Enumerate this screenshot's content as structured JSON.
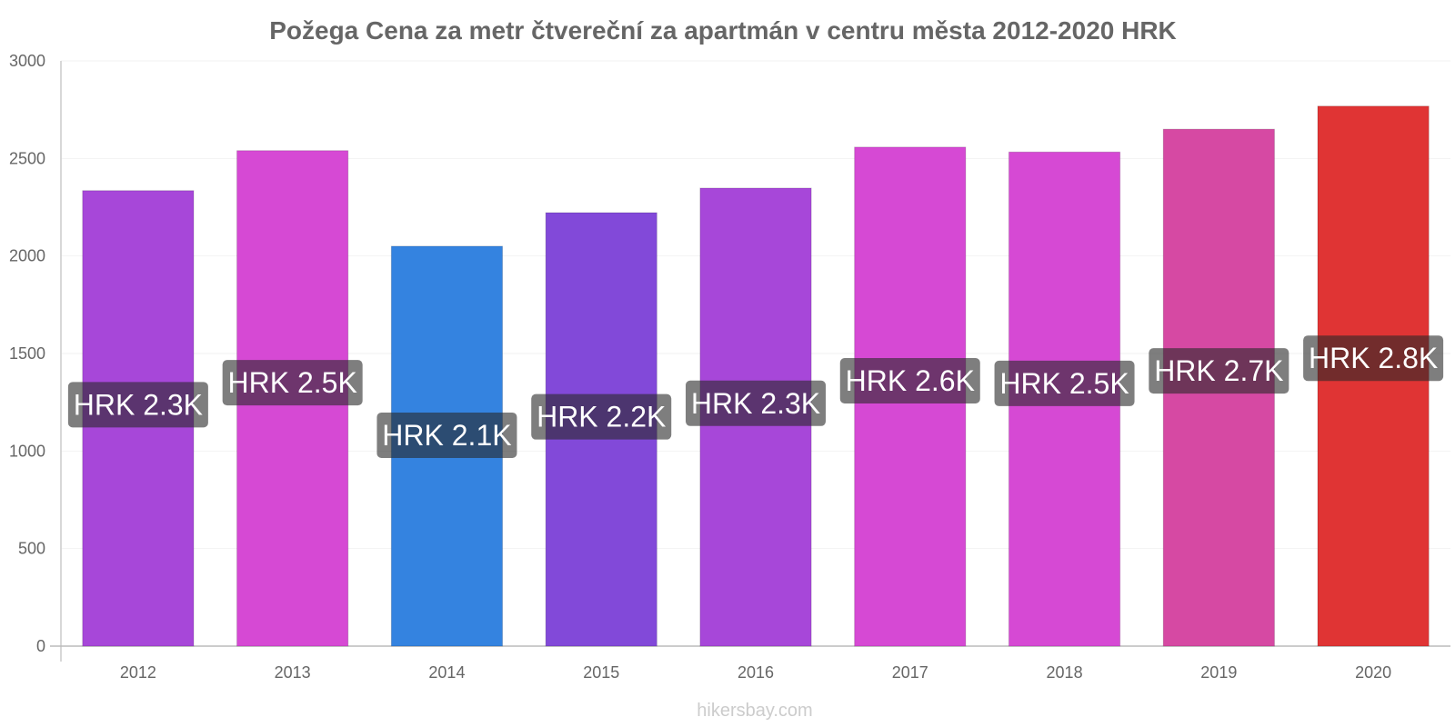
{
  "chart_data": {
    "type": "bar",
    "title": "Požega Cena za metr čtvereční za apartmán v centru města 2012-2020 HRK",
    "xlabel": "",
    "ylabel": "",
    "categories": [
      "2012",
      "2013",
      "2014",
      "2015",
      "2016",
      "2017",
      "2018",
      "2019",
      "2020"
    ],
    "values": [
      2335,
      2540,
      2050,
      2222,
      2348,
      2558,
      2533,
      2650,
      2768
    ],
    "data_labels": [
      "HRK 2.3K",
      "HRK 2.5K",
      "HRK 2.1K",
      "HRK 2.2K",
      "HRK 2.3K",
      "HRK 2.6K",
      "HRK 2.5K",
      "HRK 2.7K",
      "HRK 2.8K"
    ],
    "bar_colors": [
      "#a747d9",
      "#d649d4",
      "#3483e0",
      "#8249d9",
      "#a747d9",
      "#d649d4",
      "#d649d4",
      "#d649a3",
      "#e03434"
    ],
    "ylim": [
      0,
      3000
    ],
    "yticks": [
      0,
      500,
      1000,
      1500,
      2000,
      2500,
      3000
    ],
    "grid": true,
    "legend": "none"
  },
  "watermark": "hikersbay.com"
}
